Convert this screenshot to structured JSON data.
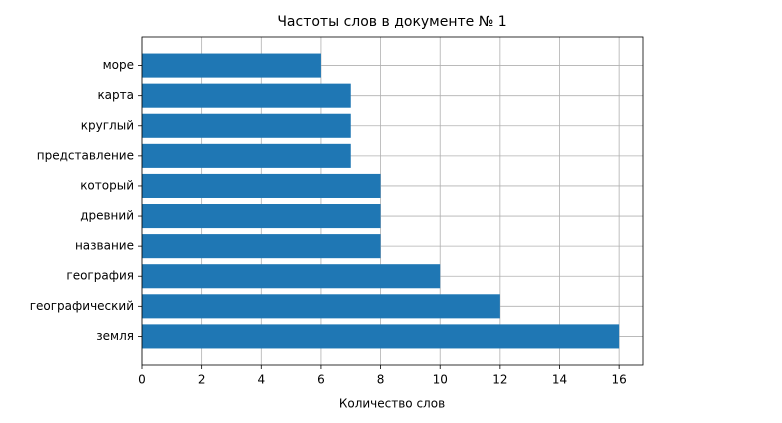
{
  "chart_data": {
    "type": "barh",
    "title": "Частоты слов в документе № 1",
    "x_label": "Количество слов",
    "categories": [
      "море",
      "карта",
      "круглый",
      "представление",
      "который",
      "древний",
      "название",
      "география",
      "географический",
      "земля"
    ],
    "values": [
      6,
      7,
      7,
      7,
      8,
      8,
      8,
      10,
      12,
      16
    ],
    "color": "#1f77b4",
    "xlim": [
      0,
      16.8
    ],
    "xticks": [
      0,
      2,
      4,
      6,
      8,
      10,
      12,
      14,
      16
    ],
    "grid": true
  }
}
